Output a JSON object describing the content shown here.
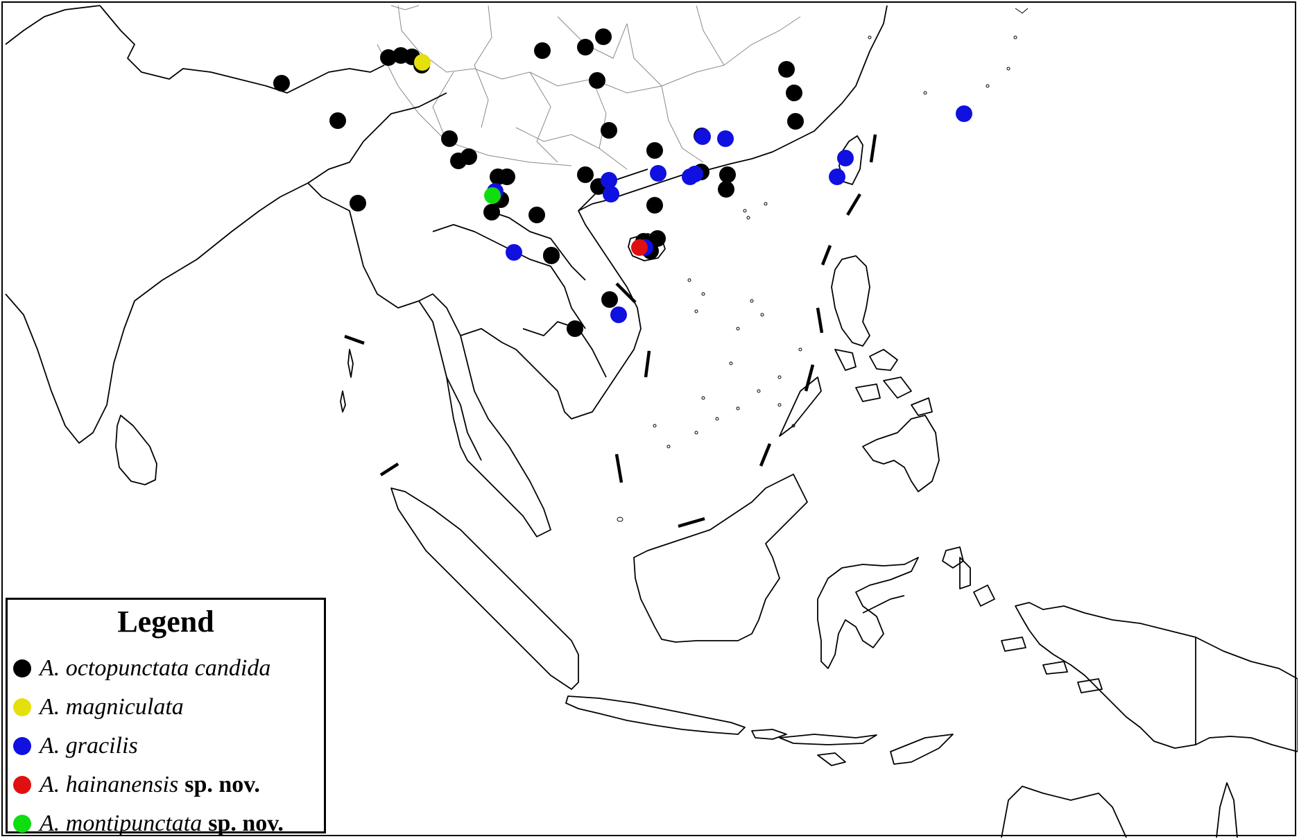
{
  "legend": {
    "title": "Legend",
    "items": [
      {
        "genus": "A.",
        "species": "octopunctata candida",
        "suffix": "",
        "color": "#000000",
        "key": "octopunctata-candida"
      },
      {
        "genus": "A.",
        "species": "magniculata",
        "suffix": "",
        "color": "#e6e00a",
        "key": "magniculata"
      },
      {
        "genus": "A.",
        "species": "gracilis",
        "suffix": "",
        "color": "#1010e0",
        "key": "gracilis"
      },
      {
        "genus": "A.",
        "species": "hainanensis",
        "suffix": "sp. nov.",
        "color": "#e01010",
        "key": "hainanensis"
      },
      {
        "genus": "A.",
        "species": "montipunctata",
        "suffix": "sp. nov.",
        "color": "#10dd10",
        "key": "montipunctata"
      }
    ]
  },
  "map": {
    "region": "Southeast Asia and South China",
    "outline_color": "#000000",
    "border_color": "#888888"
  }
}
